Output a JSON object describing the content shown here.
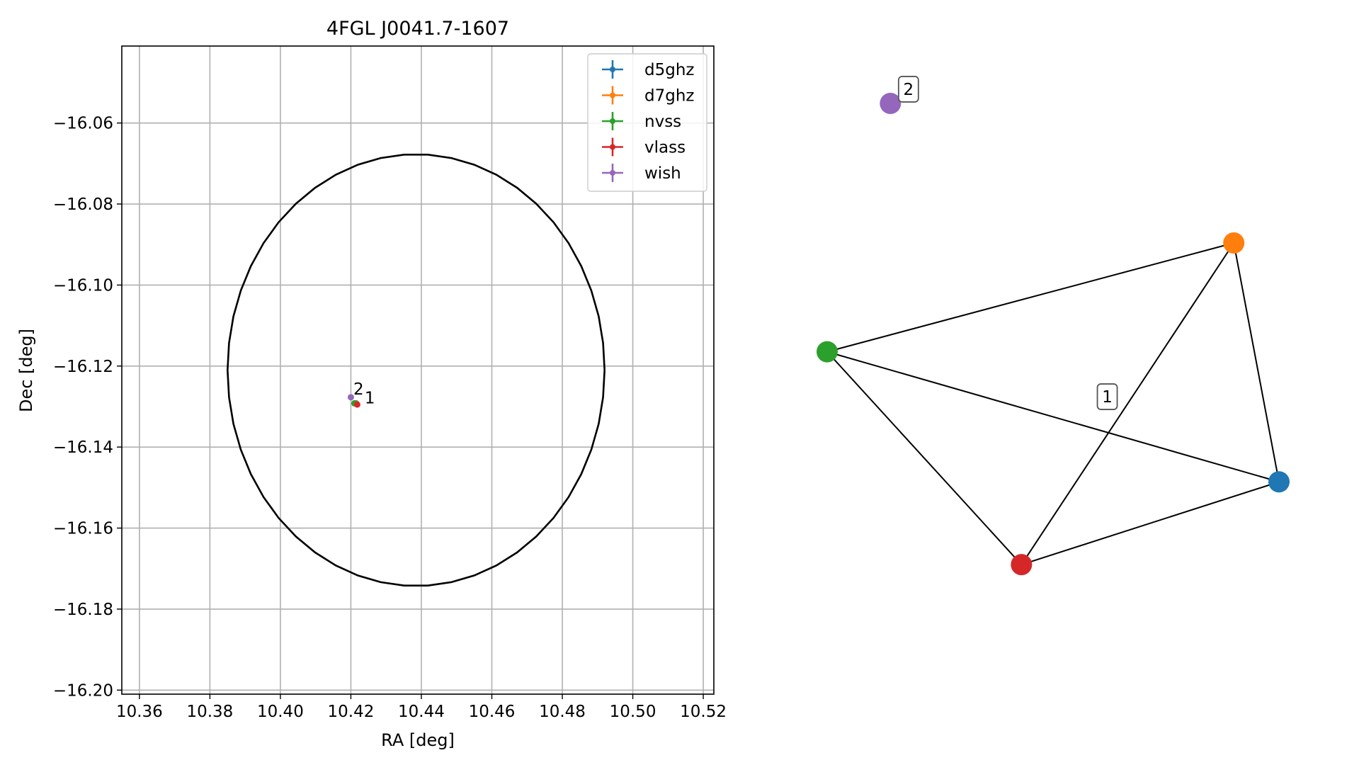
{
  "chart_data": [
    {
      "type": "scatter",
      "title": "4FGL J0041.7-1607",
      "xlabel": "RA [deg]",
      "ylabel": "Dec [deg]",
      "xlim": [
        10.355,
        10.523
      ],
      "ylim": [
        -16.201,
        -16.041
      ],
      "xticks": [
        10.36,
        10.38,
        10.4,
        10.42,
        10.44,
        10.46,
        10.48,
        10.5,
        10.52
      ],
      "xtick_labels": [
        "10.36",
        "10.38",
        "10.40",
        "10.42",
        "10.44",
        "10.46",
        "10.48",
        "10.50",
        "10.52"
      ],
      "yticks": [
        -16.06,
        -16.08,
        -16.1,
        -16.12,
        -16.14,
        -16.16,
        -16.18,
        -16.2
      ],
      "ytick_labels": [
        "−16.06",
        "−16.08",
        "−16.10",
        "−16.12",
        "−16.14",
        "−16.16",
        "−16.18",
        "−16.20"
      ],
      "grid": true,
      "legend_position": "top-right",
      "ellipse": {
        "center": [
          10.4385,
          -16.121
        ],
        "ra_radius": 0.0535,
        "dec_radius": 0.0533,
        "color": "#000000"
      },
      "series": [
        {
          "name": "d5ghz",
          "color": "#1f77b4",
          "x": [
            10.4215
          ],
          "y": [
            -16.1292
          ]
        },
        {
          "name": "d7ghz",
          "color": "#ff7f0e",
          "x": [
            10.4215
          ],
          "y": [
            -16.1293
          ]
        },
        {
          "name": "nvss",
          "color": "#2ca02c",
          "x": [
            10.421
          ],
          "y": [
            -16.1292
          ]
        },
        {
          "name": "vlass",
          "color": "#d62728",
          "x": [
            10.4218
          ],
          "y": [
            -16.1295
          ]
        },
        {
          "name": "wish",
          "color": "#9467bd",
          "x": [
            10.42
          ],
          "y": [
            -16.1277
          ]
        }
      ],
      "annotations": [
        {
          "text": "2",
          "x": 10.4203,
          "y": -16.127
        },
        {
          "text": "1",
          "x": 10.4235,
          "y": -16.1292
        }
      ]
    },
    {
      "type": "network",
      "nodes": [
        {
          "id": "d5ghz",
          "color": "#1f77b4",
          "x": 1.0,
          "y": -0.45
        },
        {
          "id": "d7ghz",
          "color": "#ff7f0e",
          "x": 0.9,
          "y": 0.56
        },
        {
          "id": "nvss",
          "color": "#2ca02c",
          "x": 0.0,
          "y": 0.1
        },
        {
          "id": "vlass",
          "color": "#d62728",
          "x": 0.43,
          "y": -0.8
        },
        {
          "id": "wish",
          "color": "#9467bd",
          "x": 0.14,
          "y": 1.15
        }
      ],
      "edges": [
        [
          "nvss",
          "d7ghz"
        ],
        [
          "nvss",
          "d5ghz"
        ],
        [
          "nvss",
          "vlass"
        ],
        [
          "d7ghz",
          "d5ghz"
        ],
        [
          "d7ghz",
          "vlass"
        ],
        [
          "vlass",
          "d5ghz"
        ]
      ],
      "cluster_labels": [
        {
          "text": "1",
          "x": 0.62,
          "y": -0.09
        },
        {
          "text": "2",
          "x": 0.18,
          "y": 1.21
        }
      ]
    }
  ]
}
